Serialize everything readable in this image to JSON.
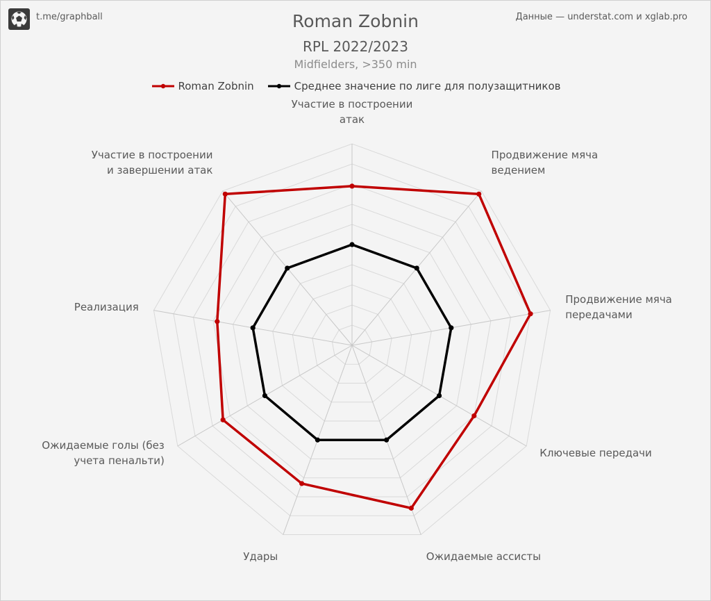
{
  "header": {
    "handle": "t.me/graphball",
    "source": "Данные — understat.com и xglab.pro",
    "logo_icon": "soccer-ball-icon"
  },
  "chart_data": {
    "type": "radar",
    "title": "Roman Zobnin",
    "subtitle": "RPL 2022/2023",
    "subtitle2": "Midfielders,  >350 min",
    "axes": [
      [
        "Участие в построении",
        "атак"
      ],
      [
        "Продвижение мяча",
        "ведением"
      ],
      [
        "Продвижение мяча",
        "передачами"
      ],
      [
        "Ключевые передачи"
      ],
      [
        "Ожидаемые ассисты"
      ],
      [
        "Удары"
      ],
      [
        "Ожидаемые голы (без",
        "учета пенальти)"
      ],
      [
        "Реализация"
      ],
      [
        "Участие в построении",
        "и завершении атак"
      ]
    ],
    "range": [
      0,
      10
    ],
    "rings": 10,
    "grid": true,
    "legend_position": "top",
    "series": [
      {
        "name": "Roman Zobnin",
        "color": "#c00000",
        "values": [
          7.9,
          9.8,
          9.0,
          7.0,
          8.6,
          7.3,
          7.4,
          6.8,
          9.8
        ]
      },
      {
        "name": "Среднее значение по лиге для полузащитников",
        "color": "#000000",
        "values": [
          5.0,
          5.0,
          5.0,
          5.0,
          5.0,
          5.0,
          5.0,
          5.0,
          5.0
        ]
      }
    ]
  }
}
